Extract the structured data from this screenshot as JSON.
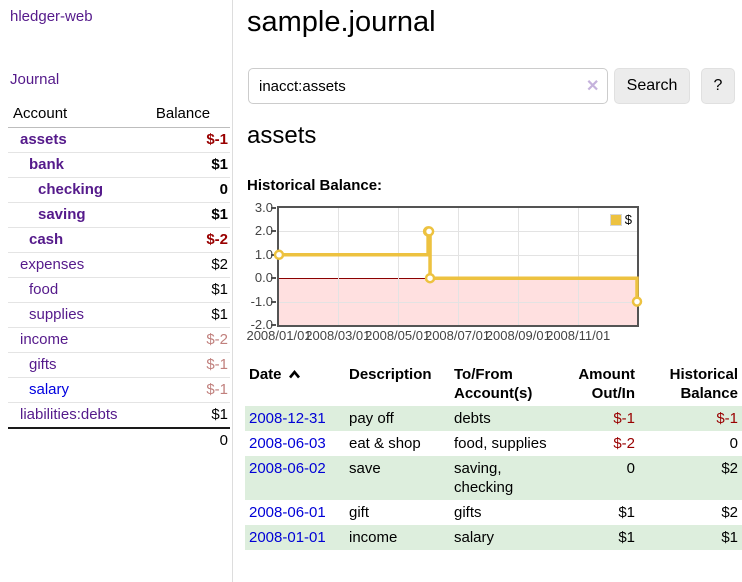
{
  "app": {
    "title": "hledger-web",
    "nav": {
      "journal": "Journal"
    }
  },
  "sidebar": {
    "header": {
      "account": "Account",
      "balance": "Balance"
    },
    "accounts": [
      {
        "name": "assets",
        "level": 0,
        "matched": true,
        "link_tone": "visited",
        "balance": "$-1",
        "balance_tone": "neg-strong"
      },
      {
        "name": "bank",
        "level": 1,
        "matched": true,
        "link_tone": "visited",
        "balance": "$1",
        "balance_tone": "normal"
      },
      {
        "name": "checking",
        "level": 2,
        "matched": true,
        "link_tone": "visited",
        "balance": "0",
        "balance_tone": "normal"
      },
      {
        "name": "saving",
        "level": 2,
        "matched": true,
        "link_tone": "visited",
        "balance": "$1",
        "balance_tone": "normal"
      },
      {
        "name": "cash",
        "level": 1,
        "matched": true,
        "link_tone": "visited",
        "balance": "$-2",
        "balance_tone": "neg-strong"
      },
      {
        "name": "expenses",
        "level": 0,
        "matched": false,
        "link_tone": "visited",
        "balance": "$2",
        "balance_tone": "normal"
      },
      {
        "name": "food",
        "level": 1,
        "matched": false,
        "link_tone": "visited",
        "balance": "$1",
        "balance_tone": "normal"
      },
      {
        "name": "supplies",
        "level": 1,
        "matched": false,
        "link_tone": "visited",
        "balance": "$1",
        "balance_tone": "normal"
      },
      {
        "name": "income",
        "level": 0,
        "matched": false,
        "link_tone": "visited",
        "balance": "$-2",
        "balance_tone": "neg-light"
      },
      {
        "name": "gifts",
        "level": 1,
        "matched": false,
        "link_tone": "visited",
        "balance": "$-1",
        "balance_tone": "neg-light"
      },
      {
        "name": "salary",
        "level": 1,
        "matched": false,
        "link_tone": "unvisited",
        "balance": "$-1",
        "balance_tone": "neg-light"
      },
      {
        "name": "liabilities:debts",
        "level": 0,
        "matched": false,
        "link_tone": "visited",
        "balance": "$1",
        "balance_tone": "normal"
      }
    ],
    "total": "0"
  },
  "main": {
    "title": "sample.journal",
    "search": {
      "value": "inacct:assets",
      "clear_icon": "✕",
      "search_button": "Search",
      "help_button": "?"
    },
    "account_heading": "assets",
    "chart_label": "Historical Balance:",
    "register": {
      "headers": [
        {
          "label": "Date",
          "align": "left",
          "sorted_asc": true
        },
        {
          "label": "Description",
          "align": "left"
        },
        {
          "label": "To/From Account(s)",
          "align": "left"
        },
        {
          "label": "Amount Out/In",
          "align": "right"
        },
        {
          "label": "Historical Balance",
          "align": "right"
        }
      ],
      "rows": [
        {
          "date": "2008-12-31",
          "description": "pay off",
          "accounts": "debts",
          "amount": "$-1",
          "amount_neg": true,
          "balance": "$-1",
          "balance_neg": true
        },
        {
          "date": "2008-06-03",
          "description": "eat & shop",
          "accounts": "food, supplies",
          "amount": "$-2",
          "amount_neg": true,
          "balance": "0",
          "balance_neg": false
        },
        {
          "date": "2008-06-02",
          "description": "save",
          "accounts": "saving, checking",
          "amount": "0",
          "amount_neg": false,
          "balance": "$2",
          "balance_neg": false
        },
        {
          "date": "2008-06-01",
          "description": "gift",
          "accounts": "gifts",
          "amount": "$1",
          "amount_neg": false,
          "balance": "$2",
          "balance_neg": false
        },
        {
          "date": "2008-01-01",
          "description": "income",
          "accounts": "salary",
          "amount": "$1",
          "amount_neg": false,
          "balance": "$1",
          "balance_neg": false
        }
      ]
    }
  },
  "chart_data": {
    "type": "line",
    "title": "Historical Balance:",
    "style": "steps",
    "series": [
      {
        "name": "$",
        "color": "#edc240",
        "points": [
          {
            "date": "2008-01-01",
            "day": 0,
            "value": 1
          },
          {
            "date": "2008-06-01",
            "day": 152,
            "value": 2
          },
          {
            "date": "2008-06-02",
            "day": 153,
            "value": 2
          },
          {
            "date": "2008-06-03",
            "day": 154,
            "value": 0
          },
          {
            "date": "2008-12-31",
            "day": 365,
            "value": -1
          }
        ]
      }
    ],
    "x_ticks": [
      {
        "day": 0,
        "label": "2008/01/01"
      },
      {
        "day": 60,
        "label": "2008/03/01"
      },
      {
        "day": 121,
        "label": "2008/05/01"
      },
      {
        "day": 182,
        "label": "2008/07/01"
      },
      {
        "day": 244,
        "label": "2008/09/01"
      },
      {
        "day": 305,
        "label": "2008/11/01"
      }
    ],
    "y_ticks": [
      {
        "v": 3,
        "label": "3.0"
      },
      {
        "v": 2,
        "label": "2.0"
      },
      {
        "v": 1,
        "label": "1.0"
      },
      {
        "v": 0,
        "label": "0.0"
      },
      {
        "v": -1,
        "label": "-1.0"
      },
      {
        "v": -2,
        "label": "-2.0"
      }
    ],
    "xlim": [
      0,
      365
    ],
    "ylim": [
      -2,
      3
    ],
    "legend": {
      "label": "$",
      "position": "top-right"
    },
    "grid": true
  },
  "colors": {
    "link_visited": "#551a8b",
    "link_unvisited": "#0000e0",
    "date_link": "#0000d6",
    "negative_strong": "#990000",
    "negative_light": "#c1807d",
    "row_stripe_green": "#ddeedd",
    "series_gold": "#edc240",
    "negative_region_pink": "rgba(255,0,0,0.12)",
    "zero_line": "#8b0000",
    "plot_border": "#545454",
    "gridline": "#e3e3e3"
  }
}
